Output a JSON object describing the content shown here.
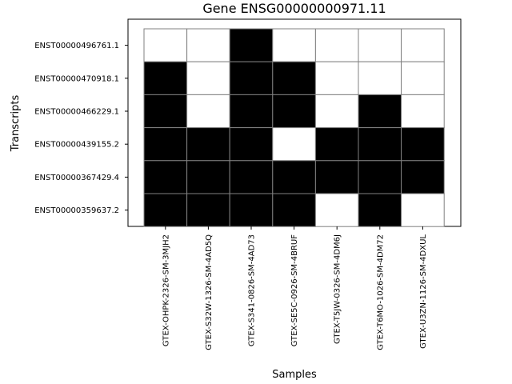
{
  "chart_data": {
    "type": "heatmap",
    "title": "Gene ENSG00000000971.11",
    "xlabel": "Samples",
    "ylabel": "Transcripts",
    "columns": [
      "GTEX-OHPK-2326-SM-3MJH2",
      "GTEX-S32W-1326-SM-4AD5Q",
      "GTEX-S341-0826-SM-4AD73",
      "GTEX-SE5C-0926-SM-4BRUF",
      "GTEX-T5JW-0326-SM-4DM6J",
      "GTEX-T6MO-1026-SM-4DM72",
      "GTEX-U3ZN-1126-SM-4DXUL"
    ],
    "rows": [
      "ENST00000496761.1",
      "ENST00000470918.1",
      "ENST00000466229.1",
      "ENST00000439155.2",
      "ENST00000367429.4",
      "ENST00000359637.2"
    ],
    "values": [
      [
        0,
        0,
        1,
        0,
        0,
        0,
        0
      ],
      [
        1,
        0,
        1,
        1,
        0,
        0,
        0
      ],
      [
        1,
        0,
        1,
        1,
        0,
        1,
        0
      ],
      [
        1,
        1,
        1,
        0,
        1,
        1,
        1
      ],
      [
        1,
        1,
        1,
        1,
        1,
        1,
        1
      ],
      [
        1,
        1,
        1,
        1,
        0,
        1,
        0
      ]
    ],
    "colors": {
      "present": "#000000",
      "absent": "#ffffff",
      "cell_border": "#808080"
    },
    "grid": false,
    "legend": "none"
  }
}
